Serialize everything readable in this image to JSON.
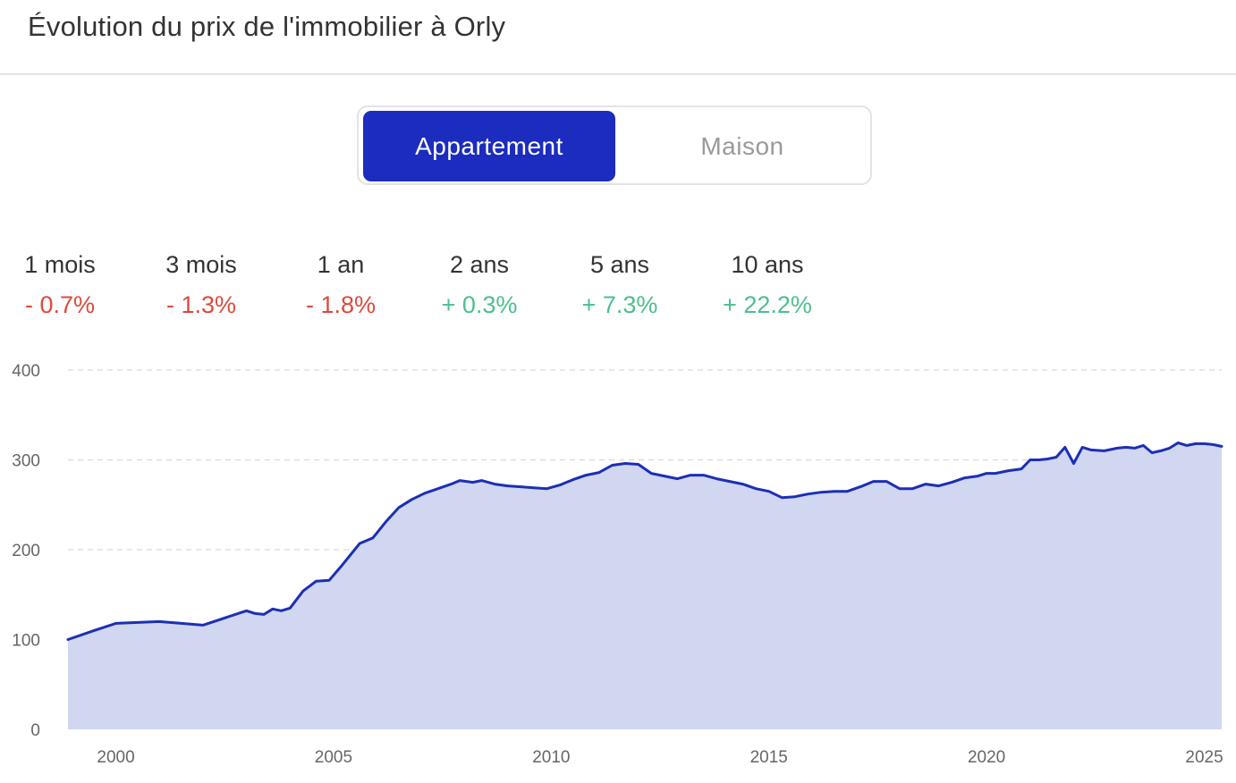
{
  "header": {
    "title": "Évolution du prix de l'immobilier à Orly"
  },
  "toggle": {
    "options": [
      "Appartement",
      "Maison"
    ],
    "selected": "Appartement"
  },
  "stats": [
    {
      "label": "1 mois",
      "value": "- 0.7%",
      "trend": "negative"
    },
    {
      "label": "3 mois",
      "value": "- 1.3%",
      "trend": "negative"
    },
    {
      "label": "1 an",
      "value": "- 1.8%",
      "trend": "negative"
    },
    {
      "label": "2 ans",
      "value": "+ 0.3%",
      "trend": "positive"
    },
    {
      "label": "5 ans",
      "value": "+ 7.3%",
      "trend": "positive"
    },
    {
      "label": "10 ans",
      "value": "+ 22.2%",
      "trend": "positive"
    }
  ],
  "colors": {
    "accent": "#1b2cbe",
    "line": "#1c2fb4",
    "area_fill": "#d1d6f1",
    "negative": "#dc4a3b",
    "positive": "#4cbf8e"
  },
  "chart_data": {
    "type": "area",
    "title": "",
    "xlabel": "",
    "ylabel": "",
    "xlim": [
      1998.9,
      2025.4
    ],
    "ylim": [
      0,
      400
    ],
    "yticks": [
      0,
      100,
      200,
      300,
      400
    ],
    "xticks": [
      2000,
      2005,
      2010,
      2015,
      2020,
      2025
    ],
    "grid": true,
    "legend": "none",
    "series": [
      {
        "x": [
          1998.9,
          1999.5,
          2000.0,
          2001.0,
          2002.0,
          2003.0,
          2003.2,
          2003.4,
          2003.6,
          2003.8,
          2004.0,
          2004.3,
          2004.6,
          2004.9,
          2005.2,
          2005.6,
          2005.9,
          2006.2,
          2006.5,
          2006.8,
          2007.1,
          2007.4,
          2007.7,
          2007.9,
          2008.2,
          2008.4,
          2008.7,
          2009.0,
          2009.3,
          2009.6,
          2009.9,
          2010.2,
          2010.5,
          2010.8,
          2011.1,
          2011.4,
          2011.7,
          2012.0,
          2012.3,
          2012.6,
          2012.9,
          2013.2,
          2013.5,
          2013.8,
          2014.1,
          2014.4,
          2014.7,
          2015.0,
          2015.3,
          2015.6,
          2015.9,
          2016.2,
          2016.5,
          2016.8,
          2017.1,
          2017.4,
          2017.7,
          2018.0,
          2018.3,
          2018.6,
          2018.9,
          2019.2,
          2019.5,
          2019.8,
          2020.0,
          2020.2,
          2020.5,
          2020.8,
          2021.0,
          2021.2,
          2021.4,
          2021.6,
          2021.8,
          2022.0,
          2022.2,
          2022.4,
          2022.7,
          2023.0,
          2023.2,
          2023.4,
          2023.6,
          2023.8,
          2024.0,
          2024.2,
          2024.4,
          2024.6,
          2024.8,
          2025.0,
          2025.2,
          2025.4
        ],
        "y": [
          100,
          110,
          118,
          120,
          116,
          132,
          129,
          128,
          134,
          132,
          135,
          154,
          165,
          166,
          183,
          207,
          213,
          231,
          247,
          256,
          263,
          268,
          273,
          277,
          275,
          277,
          273,
          271,
          270,
          269,
          268,
          272,
          278,
          283,
          286,
          294,
          296,
          295,
          285,
          282,
          279,
          283,
          283,
          279,
          276,
          273,
          268,
          265,
          258,
          259,
          262,
          264,
          265,
          265,
          270,
          276,
          276,
          268,
          268,
          273,
          271,
          275,
          280,
          282,
          285,
          285,
          288,
          290,
          300,
          300,
          301,
          303,
          314,
          296,
          314,
          311,
          310,
          313,
          314,
          313,
          316,
          308,
          310,
          313,
          319,
          316,
          318,
          318,
          317,
          315
        ]
      }
    ]
  }
}
